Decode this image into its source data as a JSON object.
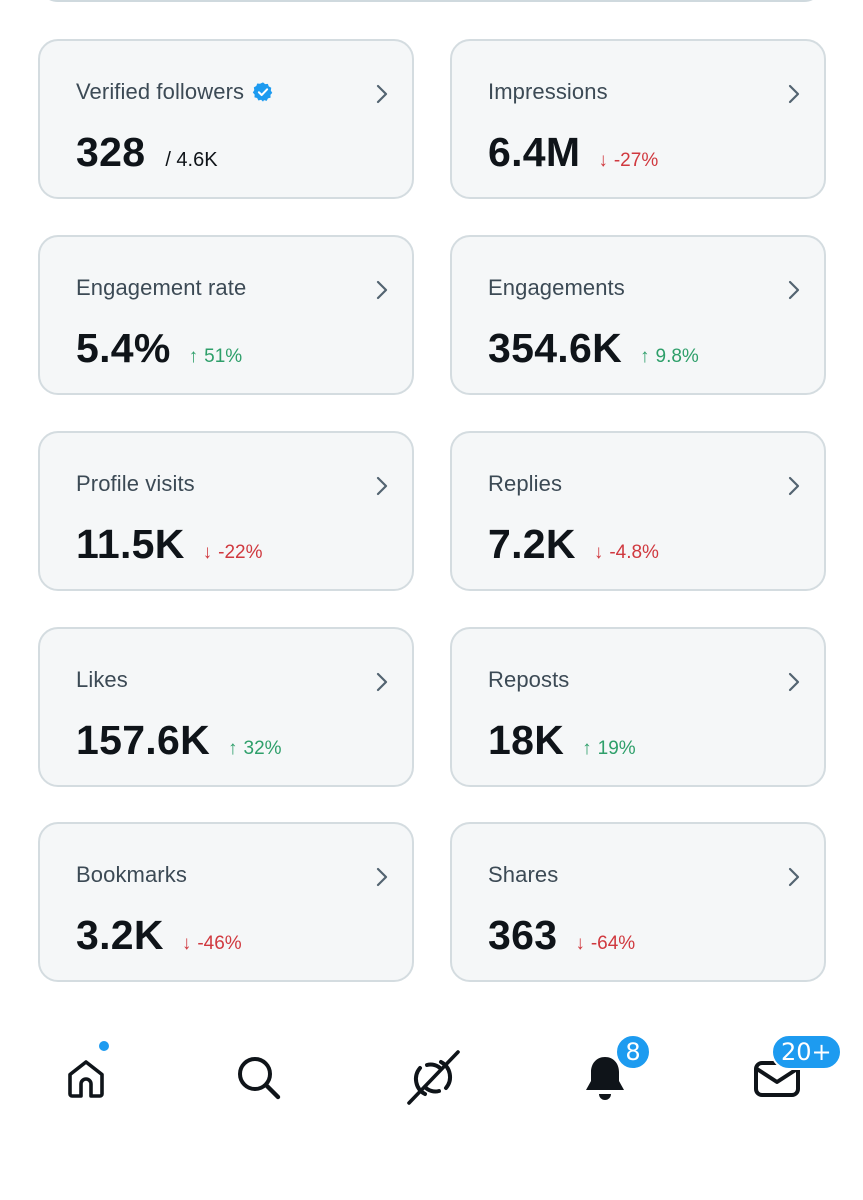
{
  "colors": {
    "card_bg": "#f5f7f8",
    "card_border": "#d4dce0",
    "up": "#2e9f6a",
    "down": "#d0393f",
    "accent": "#1d9bf0"
  },
  "metrics": [
    {
      "label": "Verified followers",
      "value": "328",
      "sub": "/ 4.6K",
      "verified_icon": "verified-badge-icon"
    },
    {
      "label": "Impressions",
      "value": "6.4M",
      "delta": "-27%",
      "direction": "down"
    },
    {
      "label": "Engagement rate",
      "value": "5.4%",
      "delta": "51%",
      "direction": "up"
    },
    {
      "label": "Engagements",
      "value": "354.6K",
      "delta": "9.8%",
      "direction": "up"
    },
    {
      "label": "Profile visits",
      "value": "11.5K",
      "delta": "-22%",
      "direction": "down"
    },
    {
      "label": "Replies",
      "value": "7.2K",
      "delta": "-4.8%",
      "direction": "down"
    },
    {
      "label": "Likes",
      "value": "157.6K",
      "delta": "32%",
      "direction": "up"
    },
    {
      "label": "Reposts",
      "value": "18K",
      "delta": "19%",
      "direction": "up"
    },
    {
      "label": "Bookmarks",
      "value": "3.2K",
      "delta": "-46%",
      "direction": "down"
    },
    {
      "label": "Shares",
      "value": "363",
      "delta": "-64%",
      "direction": "down"
    }
  ],
  "arrows": {
    "up": "↑",
    "down": "↓"
  },
  "nav": {
    "home_icon": "home-icon",
    "search_icon": "search-icon",
    "grok_icon": "grok-icon",
    "notifications_icon": "bell-icon",
    "notifications_count": "8",
    "messages_icon": "messages-icon",
    "messages_count": "20+"
  }
}
